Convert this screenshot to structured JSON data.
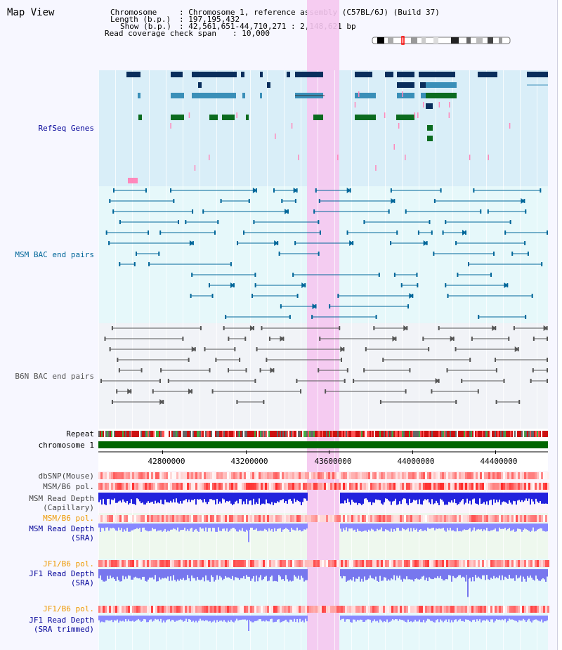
{
  "title": "Map View",
  "header": {
    "chromosome_key": "Chromosome",
    "chromosome_val": ": Chromosome 1, reference assembly (C57BL/6J) (Build 37)",
    "length_key": "Length (b.p.)",
    "length_val": ": 197,195,432",
    "show_key": "Show (b.p.)",
    "show_val": ": 42,561,651-44,710,271 : 2,148,621 bp",
    "coverage_key": "Read coverage check span",
    "coverage_val": ": 10,000"
  },
  "tracks": {
    "refseq": {
      "label": "RefSeq Genes",
      "color": "#000099"
    },
    "msm_bac": {
      "label": "MSM BAC end pairs",
      "color": "#006699"
    },
    "b6n_bac": {
      "label": "B6N BAC end pairs",
      "color": "#555555"
    },
    "repeat": {
      "label": "Repeat"
    },
    "chrom": {
      "label": "chromosome 1"
    },
    "dbsnp": {
      "label": "dbSNP(Mouse)"
    },
    "msm_b6_pol_1": {
      "label": "MSM/B6 pol."
    },
    "msm_read_cap": {
      "label": "MSM Read Depth\n(Capillary)"
    },
    "msm_b6_pol_2": {
      "label": "MSM/B6 pol."
    },
    "msm_read_sra": {
      "label": "MSM Read Depth\n(SRA)"
    },
    "jf1_b6_pol_1": {
      "label": "JF1/B6 pol."
    },
    "jf1_read_sra": {
      "label": "JF1 Read Depth\n(SRA)"
    },
    "jf1_b6_pol_2": {
      "label": "JF1/B6 pol."
    },
    "jf1_read_trim": {
      "label": "JF1 Read Depth\n(SRA trimmed)"
    }
  },
  "axis": {
    "ticks": [
      "42800000",
      "43200000",
      "43600000",
      "44000000",
      "44400000"
    ]
  },
  "colors": {
    "refseq_bg": "#d9eef8",
    "msm_bg": "#e6f8fa",
    "b6n_bg": "#f1f3f7",
    "highlight": "#f5c6ef",
    "chrom_bar": "#006600",
    "gene_dark": "#0a2e5c",
    "gene_mid": "#3a8fb8",
    "gene_green": "#0b6b1f",
    "gene_pink": "#ff88bb"
  }
}
